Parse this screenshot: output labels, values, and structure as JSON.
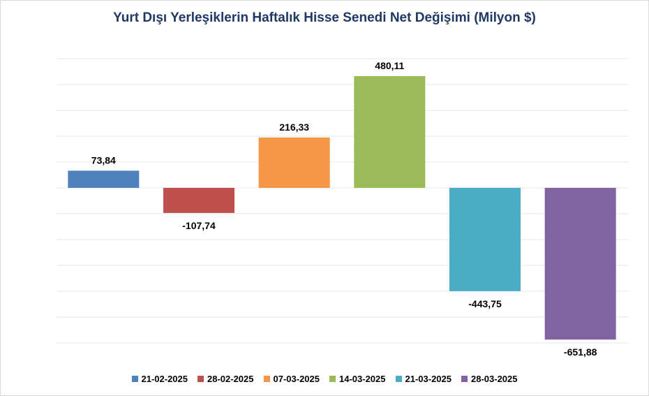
{
  "chart_data": {
    "type": "bar",
    "title": "Yurt Dışı Yerleşiklerin Haftalık Hisse Senedi Net Değişimi (Milyon $)",
    "categories": [
      "21-02-2025",
      "28-02-2025",
      "07-03-2025",
      "14-03-2025",
      "21-03-2025",
      "28-03-2025"
    ],
    "values": [
      73.84,
      -107.74,
      216.33,
      480.11,
      -443.75,
      -651.88
    ],
    "value_labels": [
      "73,84",
      "-107,74",
      "216,33",
      "480,11",
      "-443,75",
      "-651,88"
    ],
    "colors": [
      "#4f81bd",
      "#c0504d",
      "#f79646",
      "#9bbb59",
      "#4bacc6",
      "#8064a2"
    ],
    "ylim": [
      -750,
      750
    ],
    "grid": "horizontal",
    "legend_position": "bottom"
  }
}
